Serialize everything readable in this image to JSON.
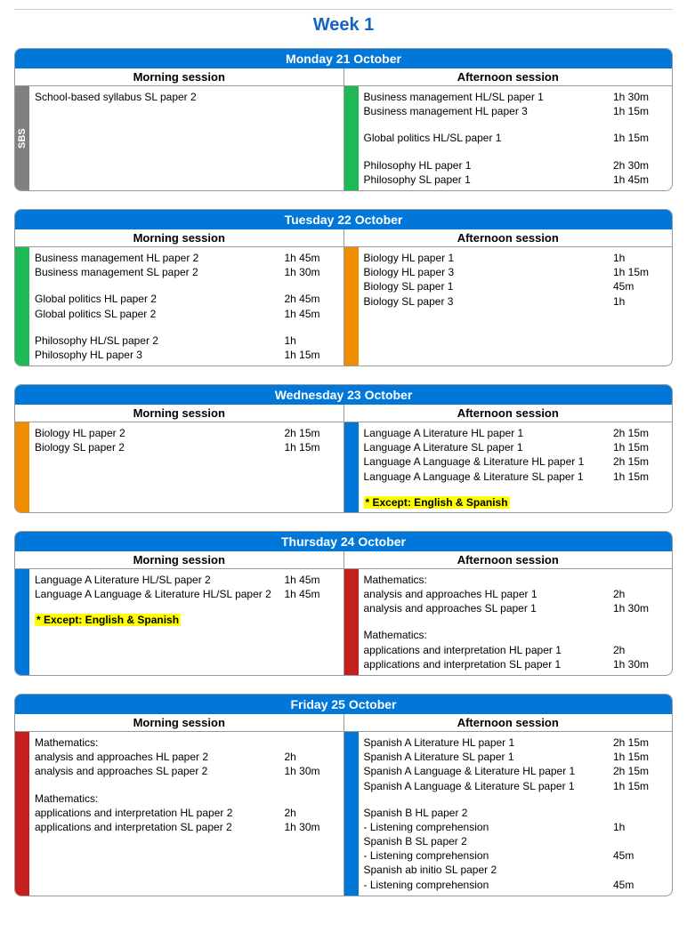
{
  "title": "Week 1",
  "colors": {
    "header": "#0077d9",
    "sbs": "#808080",
    "green": "#1db954",
    "orange": "#f08c00",
    "blue": "#0077d9",
    "red": "#c41e1e",
    "highlight": "#ffff00"
  },
  "labels": {
    "morning": "Morning session",
    "afternoon": "Afternoon session",
    "sbs": "SBS"
  },
  "days": [
    {
      "title": "Monday 21 October",
      "morning": {
        "tab_type": "sbs",
        "rows": [
          {
            "name": "School-based syllabus SL paper 2",
            "dur": ""
          }
        ]
      },
      "afternoon": {
        "tab_color": "green",
        "rows": [
          {
            "name": "Business management HL/SL paper 1",
            "dur": "1h 30m"
          },
          {
            "name": "Business management HL paper 3",
            "dur": "1h 15m"
          },
          {
            "spacer": true
          },
          {
            "name": "Global politics HL/SL paper 1",
            "dur": "1h 15m"
          },
          {
            "spacer": true
          },
          {
            "name": "Philosophy HL paper 1",
            "dur": "2h 30m"
          },
          {
            "name": "Philosophy SL paper 1",
            "dur": "1h 45m"
          }
        ]
      }
    },
    {
      "title": "Tuesday 22 October",
      "morning": {
        "tab_color": "green",
        "rows": [
          {
            "name": "Business management HL paper 2",
            "dur": "1h 45m"
          },
          {
            "name": "Business management SL paper 2",
            "dur": "1h 30m"
          },
          {
            "spacer": true
          },
          {
            "name": "Global politics HL paper 2",
            "dur": "2h 45m"
          },
          {
            "name": "Global politics SL paper 2",
            "dur": "1h 45m"
          },
          {
            "spacer": true
          },
          {
            "name": "Philosophy HL/SL paper 2",
            "dur": "1h"
          },
          {
            "name": "Philosophy HL paper 3",
            "dur": "1h 15m"
          }
        ]
      },
      "afternoon": {
        "tab_color": "orange",
        "rows": [
          {
            "name": "Biology HL paper 1",
            "dur": "1h"
          },
          {
            "name": "Biology HL paper 3",
            "dur": "1h 15m"
          },
          {
            "name": "Biology SL paper 1",
            "dur": "45m"
          },
          {
            "name": "Biology SL paper 3",
            "dur": "1h"
          }
        ]
      }
    },
    {
      "title": "Wednesday 23 October",
      "morning": {
        "tab_color": "orange",
        "rows": [
          {
            "name": "Biology HL paper 2",
            "dur": "2h 15m"
          },
          {
            "name": "Biology SL paper 2",
            "dur": "1h 15m"
          }
        ]
      },
      "afternoon": {
        "tab_color": "blue",
        "rows": [
          {
            "name": "Language A Literature HL paper 1",
            "dur": "2h 15m"
          },
          {
            "name": "Language A Literature SL paper 1",
            "dur": "1h 15m"
          },
          {
            "name": "Language A Language & Literature HL paper 1",
            "dur": "2h 15m"
          },
          {
            "name": "Language A Language & Literature SL paper 1",
            "dur": "1h 15m"
          }
        ],
        "note": "* Except: English & Spanish"
      }
    },
    {
      "title": "Thursday 24 October",
      "morning": {
        "tab_color": "blue",
        "rows": [
          {
            "name": "Language A Literature HL/SL paper 2",
            "dur": "1h 45m"
          },
          {
            "name": "Language A Language & Literature HL/SL paper 2",
            "dur": "1h 45m"
          }
        ],
        "note": "* Except: English & Spanish"
      },
      "afternoon": {
        "tab_color": "red",
        "rows": [
          {
            "name": "Mathematics:",
            "dur": ""
          },
          {
            "name": "analysis and approaches HL paper 1",
            "dur": "2h"
          },
          {
            "name": "analysis and approaches SL paper 1",
            "dur": "1h 30m"
          },
          {
            "spacer": true
          },
          {
            "name": "Mathematics:",
            "dur": ""
          },
          {
            "name": "applications and interpretation HL paper 1",
            "dur": "2h"
          },
          {
            "name": "applications and interpretation SL paper 1",
            "dur": "1h 30m"
          }
        ]
      }
    },
    {
      "title": "Friday 25 October",
      "morning": {
        "tab_color": "red",
        "rows": [
          {
            "name": "Mathematics:",
            "dur": ""
          },
          {
            "name": "analysis and approaches HL paper 2",
            "dur": "2h"
          },
          {
            "name": "analysis and approaches SL paper 2",
            "dur": "1h 30m"
          },
          {
            "spacer": true
          },
          {
            "name": "Mathematics:",
            "dur": ""
          },
          {
            "name": "applications and interpretation HL paper 2",
            "dur": "2h"
          },
          {
            "name": "applications and interpretation SL paper 2",
            "dur": "1h 30m"
          }
        ]
      },
      "afternoon": {
        "tab_color": "blue",
        "rows": [
          {
            "name": "Spanish A Literature HL paper 1",
            "dur": "2h 15m"
          },
          {
            "name": "Spanish A Literature SL paper 1",
            "dur": "1h 15m"
          },
          {
            "name": "Spanish A Language & Literature HL paper 1",
            "dur": "2h 15m"
          },
          {
            "name": "Spanish A Language & Literature SL paper 1",
            "dur": "1h 15m"
          },
          {
            "spacer": true
          },
          {
            "name": "Spanish B HL paper 2",
            "dur": ""
          },
          {
            "name": "- Listening comprehension",
            "dur": "1h"
          },
          {
            "name": "Spanish B SL paper 2",
            "dur": ""
          },
          {
            "name": "- Listening comprehension",
            "dur": "45m"
          },
          {
            "name": "Spanish ab initio SL paper 2",
            "dur": ""
          },
          {
            "name": "- Listening comprehension",
            "dur": "45m"
          }
        ]
      }
    }
  ]
}
